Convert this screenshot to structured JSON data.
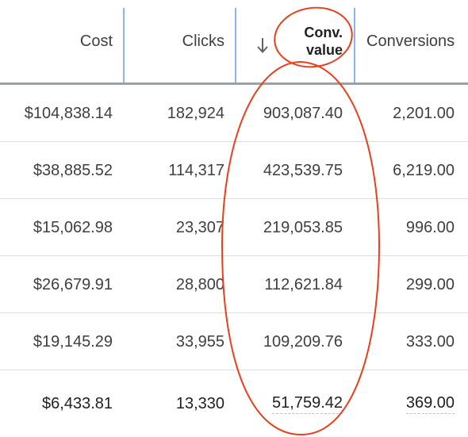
{
  "table": {
    "columns": [
      {
        "key": "cost",
        "label": "Cost"
      },
      {
        "key": "clicks",
        "label": "Clicks"
      },
      {
        "key": "conv_value",
        "label_line1": "Conv.",
        "label_line2": "value",
        "sorted": "descending"
      },
      {
        "key": "conversions",
        "label": "Conversions"
      }
    ],
    "rows": [
      {
        "cost": "$104,838.14",
        "clicks": "182,924",
        "conv_value": "903,087.40",
        "conversions": "2,201.00"
      },
      {
        "cost": "$38,885.52",
        "clicks": "114,317",
        "conv_value": "423,539.75",
        "conversions": "6,219.00"
      },
      {
        "cost": "$15,062.98",
        "clicks": "23,307",
        "conv_value": "219,053.85",
        "conversions": "996.00"
      },
      {
        "cost": "$26,679.91",
        "clicks": "28,800",
        "conv_value": "112,621.84",
        "conversions": "299.00"
      },
      {
        "cost": "$19,145.29",
        "clicks": "33,955",
        "conv_value": "109,209.76",
        "conversions": "333.00"
      },
      {
        "cost": "$6,433.81",
        "clicks": "13,330",
        "conv_value": "51,759.42",
        "conversions": "369.00"
      }
    ]
  },
  "colors": {
    "annotation": "#e8401c",
    "header_divider": "#9aa0a6",
    "column_border": "#8ab4f8",
    "row_border": "#dadce0"
  },
  "icons": {
    "sort": "arrow-down-icon"
  }
}
